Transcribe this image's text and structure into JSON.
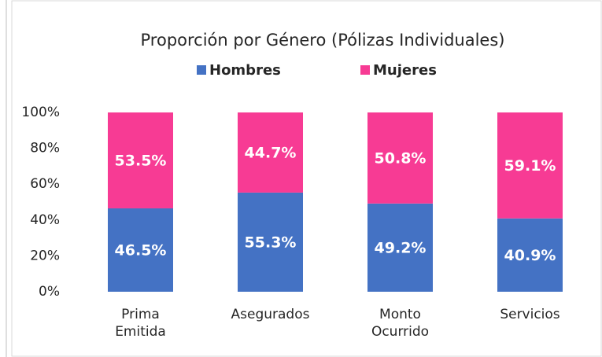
{
  "chart_data": {
    "type": "stacked_bar",
    "title": "Proporción por Género (Pólizas Individuales)",
    "categories": [
      [
        "Prima",
        "Emitida"
      ],
      [
        "Asegurados"
      ],
      [
        "Monto",
        "Ocurrido"
      ],
      [
        "Servicios"
      ]
    ],
    "series": [
      {
        "name": "Hombres",
        "color": "#4472c4",
        "values": [
          46.5,
          55.3,
          49.2,
          40.9
        ],
        "value_labels": [
          "46.5%",
          "55.3%",
          "49.2%",
          "40.9%"
        ]
      },
      {
        "name": "Mujeres",
        "color": "#f73b94",
        "values": [
          53.5,
          44.7,
          50.8,
          59.1
        ],
        "value_labels": [
          "53.5%",
          "44.7%",
          "50.8%",
          "59.1%"
        ]
      }
    ],
    "ylim": [
      0,
      100
    ],
    "yticks": [
      {
        "value": 0,
        "label": "0%"
      },
      {
        "value": 20,
        "label": "20%"
      },
      {
        "value": 40,
        "label": "40%"
      },
      {
        "value": 60,
        "label": "60%"
      },
      {
        "value": 80,
        "label": "80%"
      },
      {
        "value": 100,
        "label": "100%"
      }
    ],
    "grid": false
  }
}
